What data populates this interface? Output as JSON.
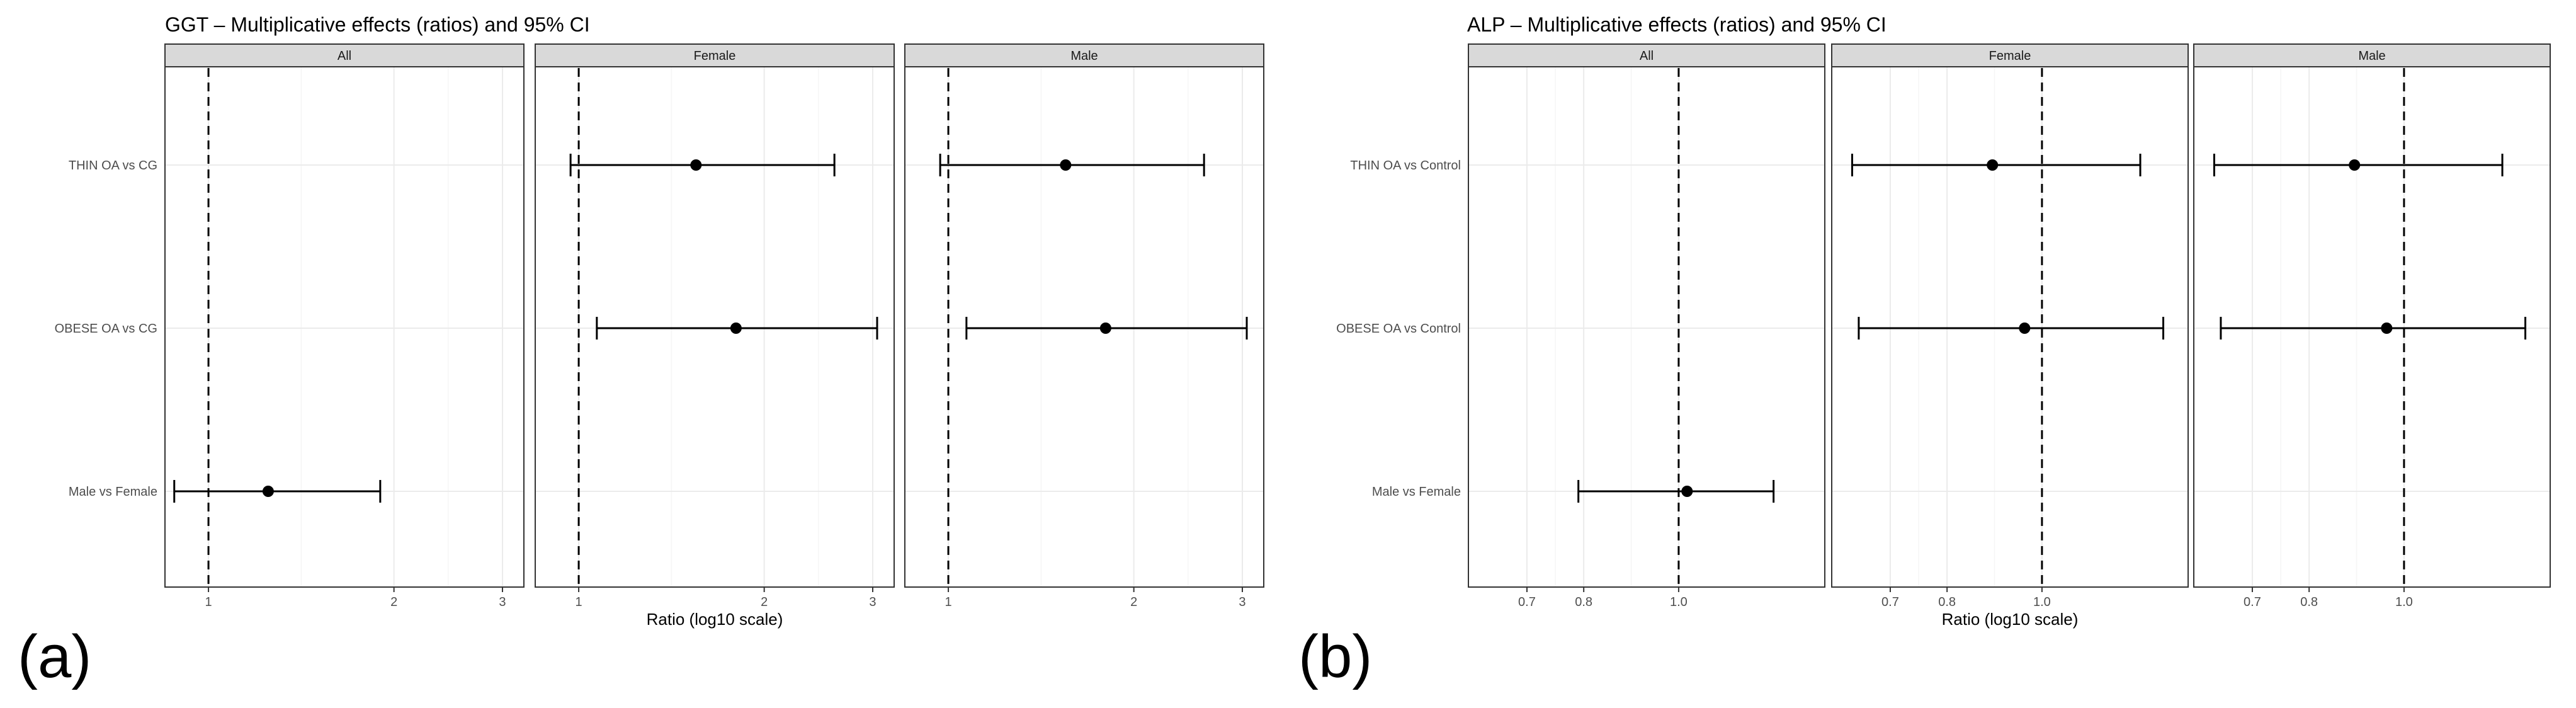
{
  "chart_data": [
    {
      "type": "forest",
      "title": "GGT – Multiplicative effects (ratios) and 95% CI",
      "tag": "(a)",
      "xlabel": "Ratio (log10 scale)",
      "x_scale": "log10",
      "xlim": [
        0.85,
        3.25
      ],
      "reference_line": 1,
      "x_ticks": [
        1,
        2,
        3
      ],
      "x_tick_labels": [
        "1",
        "2",
        "3"
      ],
      "categories": [
        "THIN OA vs CG",
        "OBESE OA vs CG",
        "Male vs Female"
      ],
      "panels": [
        {
          "name": "All",
          "estimates": [
            {
              "category": "Male vs Female",
              "estimate": 1.25,
              "lower": 0.88,
              "upper": 1.9
            }
          ]
        },
        {
          "name": "Female",
          "estimates": [
            {
              "category": "THIN OA vs CG",
              "estimate": 1.55,
              "lower": 0.97,
              "upper": 2.6
            },
            {
              "category": "OBESE OA vs CG",
              "estimate": 1.8,
              "lower": 1.07,
              "upper": 3.05
            }
          ]
        },
        {
          "name": "Male",
          "estimates": [
            {
              "category": "THIN OA vs CG",
              "estimate": 1.55,
              "lower": 0.97,
              "upper": 2.6
            },
            {
              "category": "OBESE OA vs CG",
              "estimate": 1.8,
              "lower": 1.07,
              "upper": 3.05
            }
          ]
        }
      ],
      "grid": true
    },
    {
      "type": "forest",
      "title": "ALP – Multiplicative effects (ratios) and 95% CI",
      "tag": "(b)",
      "xlabel": "Ratio (log10 scale)",
      "x_scale": "log10",
      "xlim": [
        0.61,
        1.41
      ],
      "reference_line": 1,
      "x_ticks": [
        0.7,
        0.8,
        1
      ],
      "x_tick_labels": [
        "0.7",
        "0.8",
        "1.0"
      ],
      "categories": [
        "THIN OA vs Control",
        "OBESE OA vs Control",
        "Male vs Female"
      ],
      "panels": [
        {
          "name": "All",
          "estimates": [
            {
              "category": "Male vs Female",
              "estimate": 1.02,
              "lower": 0.79,
              "upper": 1.25
            }
          ]
        },
        {
          "name": "Female",
          "estimates": [
            {
              "category": "THIN OA vs Control",
              "estimate": 0.89,
              "lower": 0.64,
              "upper": 1.26
            },
            {
              "category": "OBESE OA vs Control",
              "estimate": 0.96,
              "lower": 0.65,
              "upper": 1.33
            }
          ]
        },
        {
          "name": "Male",
          "estimates": [
            {
              "category": "THIN OA vs Control",
              "estimate": 0.89,
              "lower": 0.64,
              "upper": 1.26
            },
            {
              "category": "OBESE OA vs Control",
              "estimate": 0.96,
              "lower": 0.65,
              "upper": 1.33
            }
          ]
        }
      ],
      "grid": true
    }
  ]
}
